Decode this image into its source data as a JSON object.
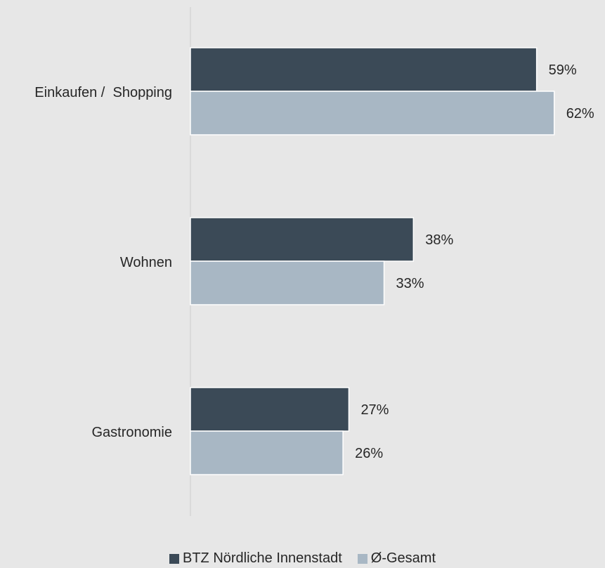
{
  "chart_data": {
    "type": "bar",
    "orientation": "horizontal",
    "title": "",
    "xlabel": "",
    "ylabel": "",
    "categories": [
      "Einkaufen /  Shopping",
      "Wohnen",
      "Gastronomie"
    ],
    "series": [
      {
        "name": "BTZ Nördliche Innenstadt",
        "values": [
          59,
          38,
          27
        ],
        "labels": [
          "59%",
          "38%",
          "27%"
        ],
        "color": "#3b4a57"
      },
      {
        "name": "Ø-Gesamt",
        "values": [
          62,
          33,
          26
        ],
        "labels": [
          "62%",
          "33%",
          "26%"
        ],
        "color": "#a8b7c4"
      }
    ],
    "xlim": [
      0,
      70
    ],
    "value_axis_visible": false,
    "grid": false,
    "legend_position": "bottom"
  }
}
